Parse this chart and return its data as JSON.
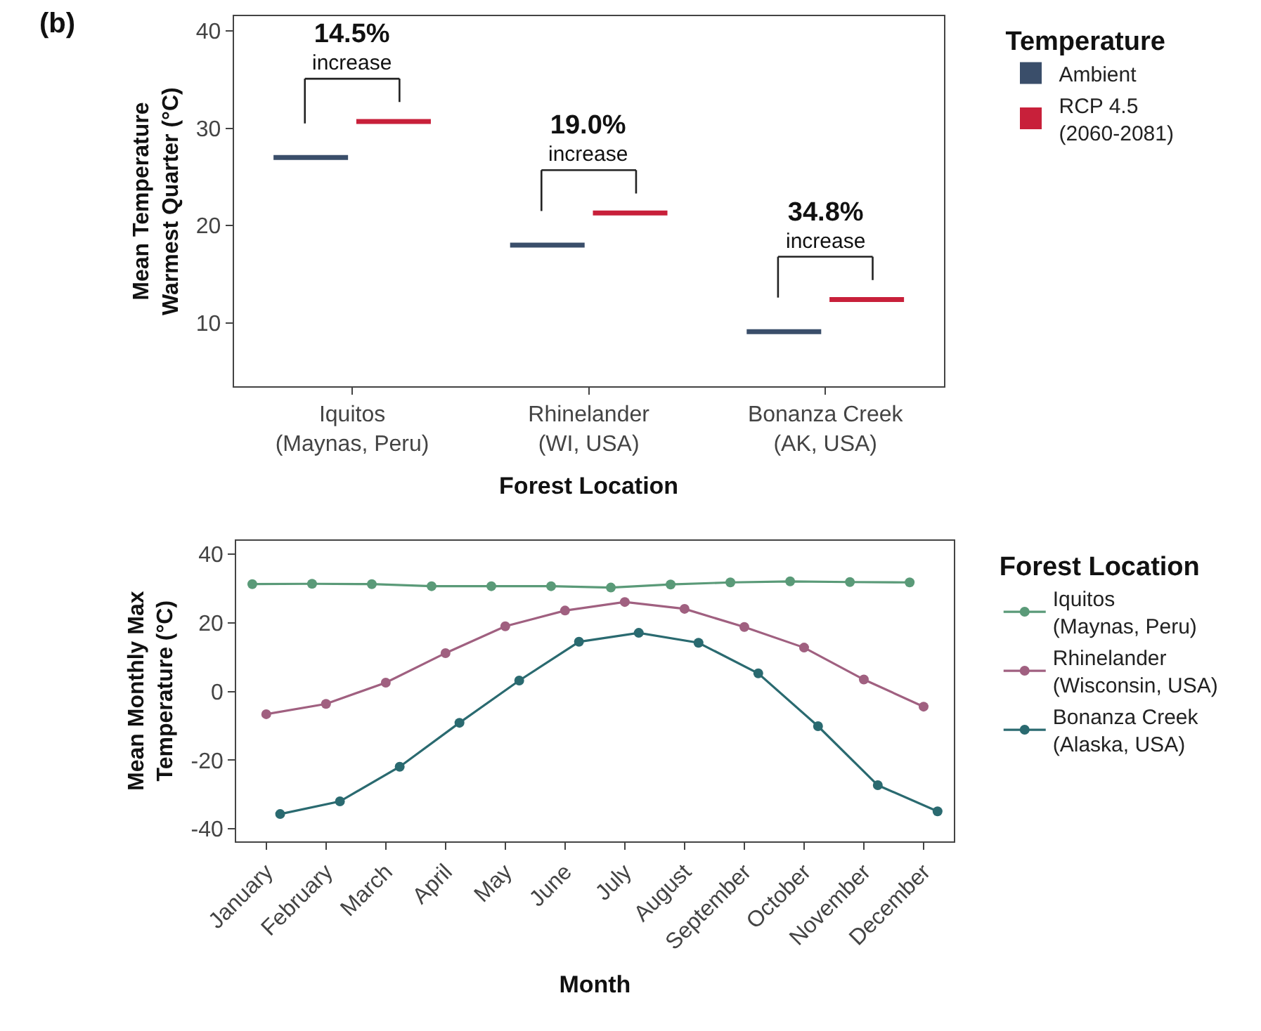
{
  "chart_data": [
    {
      "type": "box",
      "xlabel": "Forest Location",
      "ylabel": "Mean Temperature\nWarmest Quarter (°C)",
      "legend_title": "Temperature",
      "legend": "right",
      "grid": false,
      "categories": [
        "Iquitos\n(Maynas, Peru)",
        "Rhinelander\n(WI, USA)",
        "Bonanza Creek\n(AK, USA)"
      ],
      "series": [
        {
          "name": "Ambient",
          "color": "#3a4e6a",
          "boxes": [
            {
              "low": 27.0,
              "q1": 27.0,
              "median": 27.0,
              "q3": 27.0,
              "high": 27.0
            },
            {
              "low": 18.0,
              "q1": 18.0,
              "median": 18.0,
              "q3": 18.0,
              "high": 18.0
            },
            {
              "low": 9.1,
              "q1": 9.1,
              "median": 9.1,
              "q3": 9.1,
              "high": 9.1
            }
          ]
        },
        {
          "name": "RCP 4.5\n(2060-2081)",
          "color": "#c8203a",
          "boxes": [
            {
              "low": 30.7,
              "q1": 30.7,
              "median": 30.7,
              "q3": 30.7,
              "high": 30.7
            },
            {
              "low": 21.3,
              "q1": 21.3,
              "median": 21.3,
              "q3": 21.3,
              "high": 21.3
            },
            {
              "low": 12.4,
              "q1": 12.4,
              "median": 12.4,
              "q3": 12.4,
              "high": 12.4
            }
          ]
        }
      ],
      "ylim": [
        3.5,
        41.5
      ],
      "yticks": [
        10,
        20,
        30,
        40
      ],
      "annotations": [
        "(b)",
        "14.5%\nincrease",
        "19.0%\nincrease",
        "34.8%\nincrease"
      ]
    },
    {
      "type": "line",
      "xlabel": "Month",
      "ylabel": "Mean Monthly Max\nTemperature (°C)",
      "legend_title": "Forest Location",
      "legend": "right",
      "grid": false,
      "marker": "circle",
      "categories": [
        "January",
        "February",
        "March",
        "April",
        "May",
        "June",
        "July",
        "August",
        "September",
        "October",
        "November",
        "December"
      ],
      "series": [
        {
          "name": "Iquitos\n(Maynas, Peru)",
          "color": "#5a9a78",
          "values": [
            31.3,
            31.4,
            31.3,
            30.7,
            30.7,
            30.7,
            30.3,
            31.2,
            31.8,
            32.1,
            31.9,
            31.8
          ]
        },
        {
          "name": "Rhinelander\n(Wisconsin, USA)",
          "color": "#a06080",
          "values": [
            -6.6,
            -3.6,
            2.6,
            11.2,
            19.0,
            23.6,
            26.1,
            24.1,
            18.8,
            12.8,
            3.5,
            -4.4
          ]
        },
        {
          "name": "Bonanza Creek\n(Alaska, USA)",
          "color": "#2a6a70",
          "values": [
            -35.7,
            -32.0,
            -21.9,
            -9.1,
            3.2,
            14.5,
            17.1,
            14.2,
            5.3,
            -10.1,
            -27.3,
            -34.9
          ]
        }
      ],
      "ylim": [
        -43.6,
        44.0
      ],
      "yticks": [
        -40,
        -20,
        0,
        20,
        40
      ]
    }
  ]
}
